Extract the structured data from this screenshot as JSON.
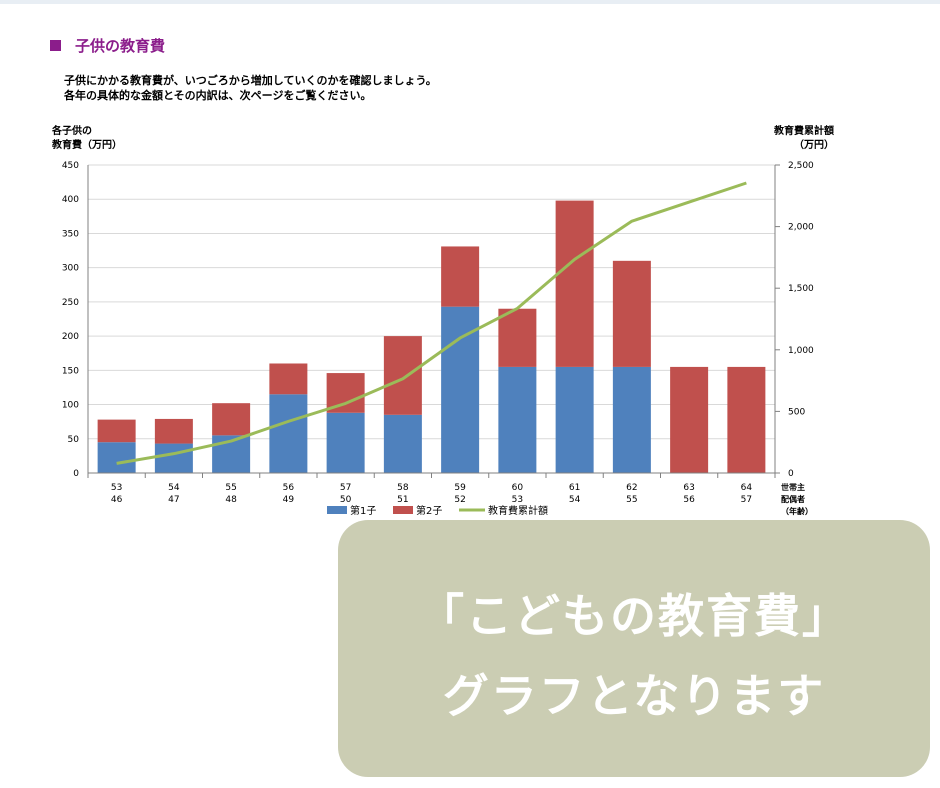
{
  "section": {
    "title": "子供の教育費",
    "intro": [
      "子供にかかる教育費が、いつごろから増加していくのかを確認しましょう。",
      "各年の具体的な金額とその内訳は、次ページをご覧ください。"
    ]
  },
  "overlay": {
    "line1": "「こどもの教育費」",
    "line2": "グラフとなります"
  },
  "colors": {
    "child1": "#4f81bd",
    "child2": "#c0504d",
    "cumulative": "#9bbb59",
    "accent": "#8b1d8b",
    "overlay": "#cbcdb3"
  },
  "chart_data": {
    "type": "bar",
    "stacked": true,
    "left_axis_title": [
      "各子供の",
      "教育費（万円）"
    ],
    "right_axis_title": [
      "教育費累計額",
      "（万円）"
    ],
    "x_axis_title": [
      "世帯主",
      "配偶者",
      "（年齢）"
    ],
    "categories": [
      [
        "53",
        "46"
      ],
      [
        "54",
        "47"
      ],
      [
        "55",
        "48"
      ],
      [
        "56",
        "49"
      ],
      [
        "57",
        "50"
      ],
      [
        "58",
        "51"
      ],
      [
        "59",
        "52"
      ],
      [
        "60",
        "53"
      ],
      [
        "61",
        "54"
      ],
      [
        "62",
        "55"
      ],
      [
        "63",
        "56"
      ],
      [
        "64",
        "57"
      ]
    ],
    "ylim": [
      0,
      450
    ],
    "yticks": [
      0,
      50,
      100,
      150,
      200,
      250,
      300,
      350,
      400,
      450
    ],
    "y2lim": [
      0,
      2500
    ],
    "y2ticks": [
      0,
      500,
      1000,
      1500,
      2000,
      2500
    ],
    "y2tick_labels": [
      "0",
      "500",
      "1,000",
      "1,500",
      "2,000",
      "2,500"
    ],
    "series": [
      {
        "name": "第1子",
        "type": "bar",
        "values": [
          45,
          43,
          55,
          115,
          88,
          85,
          243,
          155,
          155,
          155,
          0,
          0
        ]
      },
      {
        "name": "第2子",
        "type": "bar",
        "values": [
          33,
          36,
          47,
          45,
          58,
          115,
          88,
          85,
          243,
          155,
          155,
          155
        ]
      },
      {
        "name": "教育費累計額",
        "type": "line",
        "axis": "right",
        "values": [
          78,
          157,
          259,
          419,
          565,
          765,
          1096,
          1336,
          1734,
          2044,
          2199,
          2354
        ]
      }
    ],
    "legend_position": "bottom",
    "grid": true
  }
}
